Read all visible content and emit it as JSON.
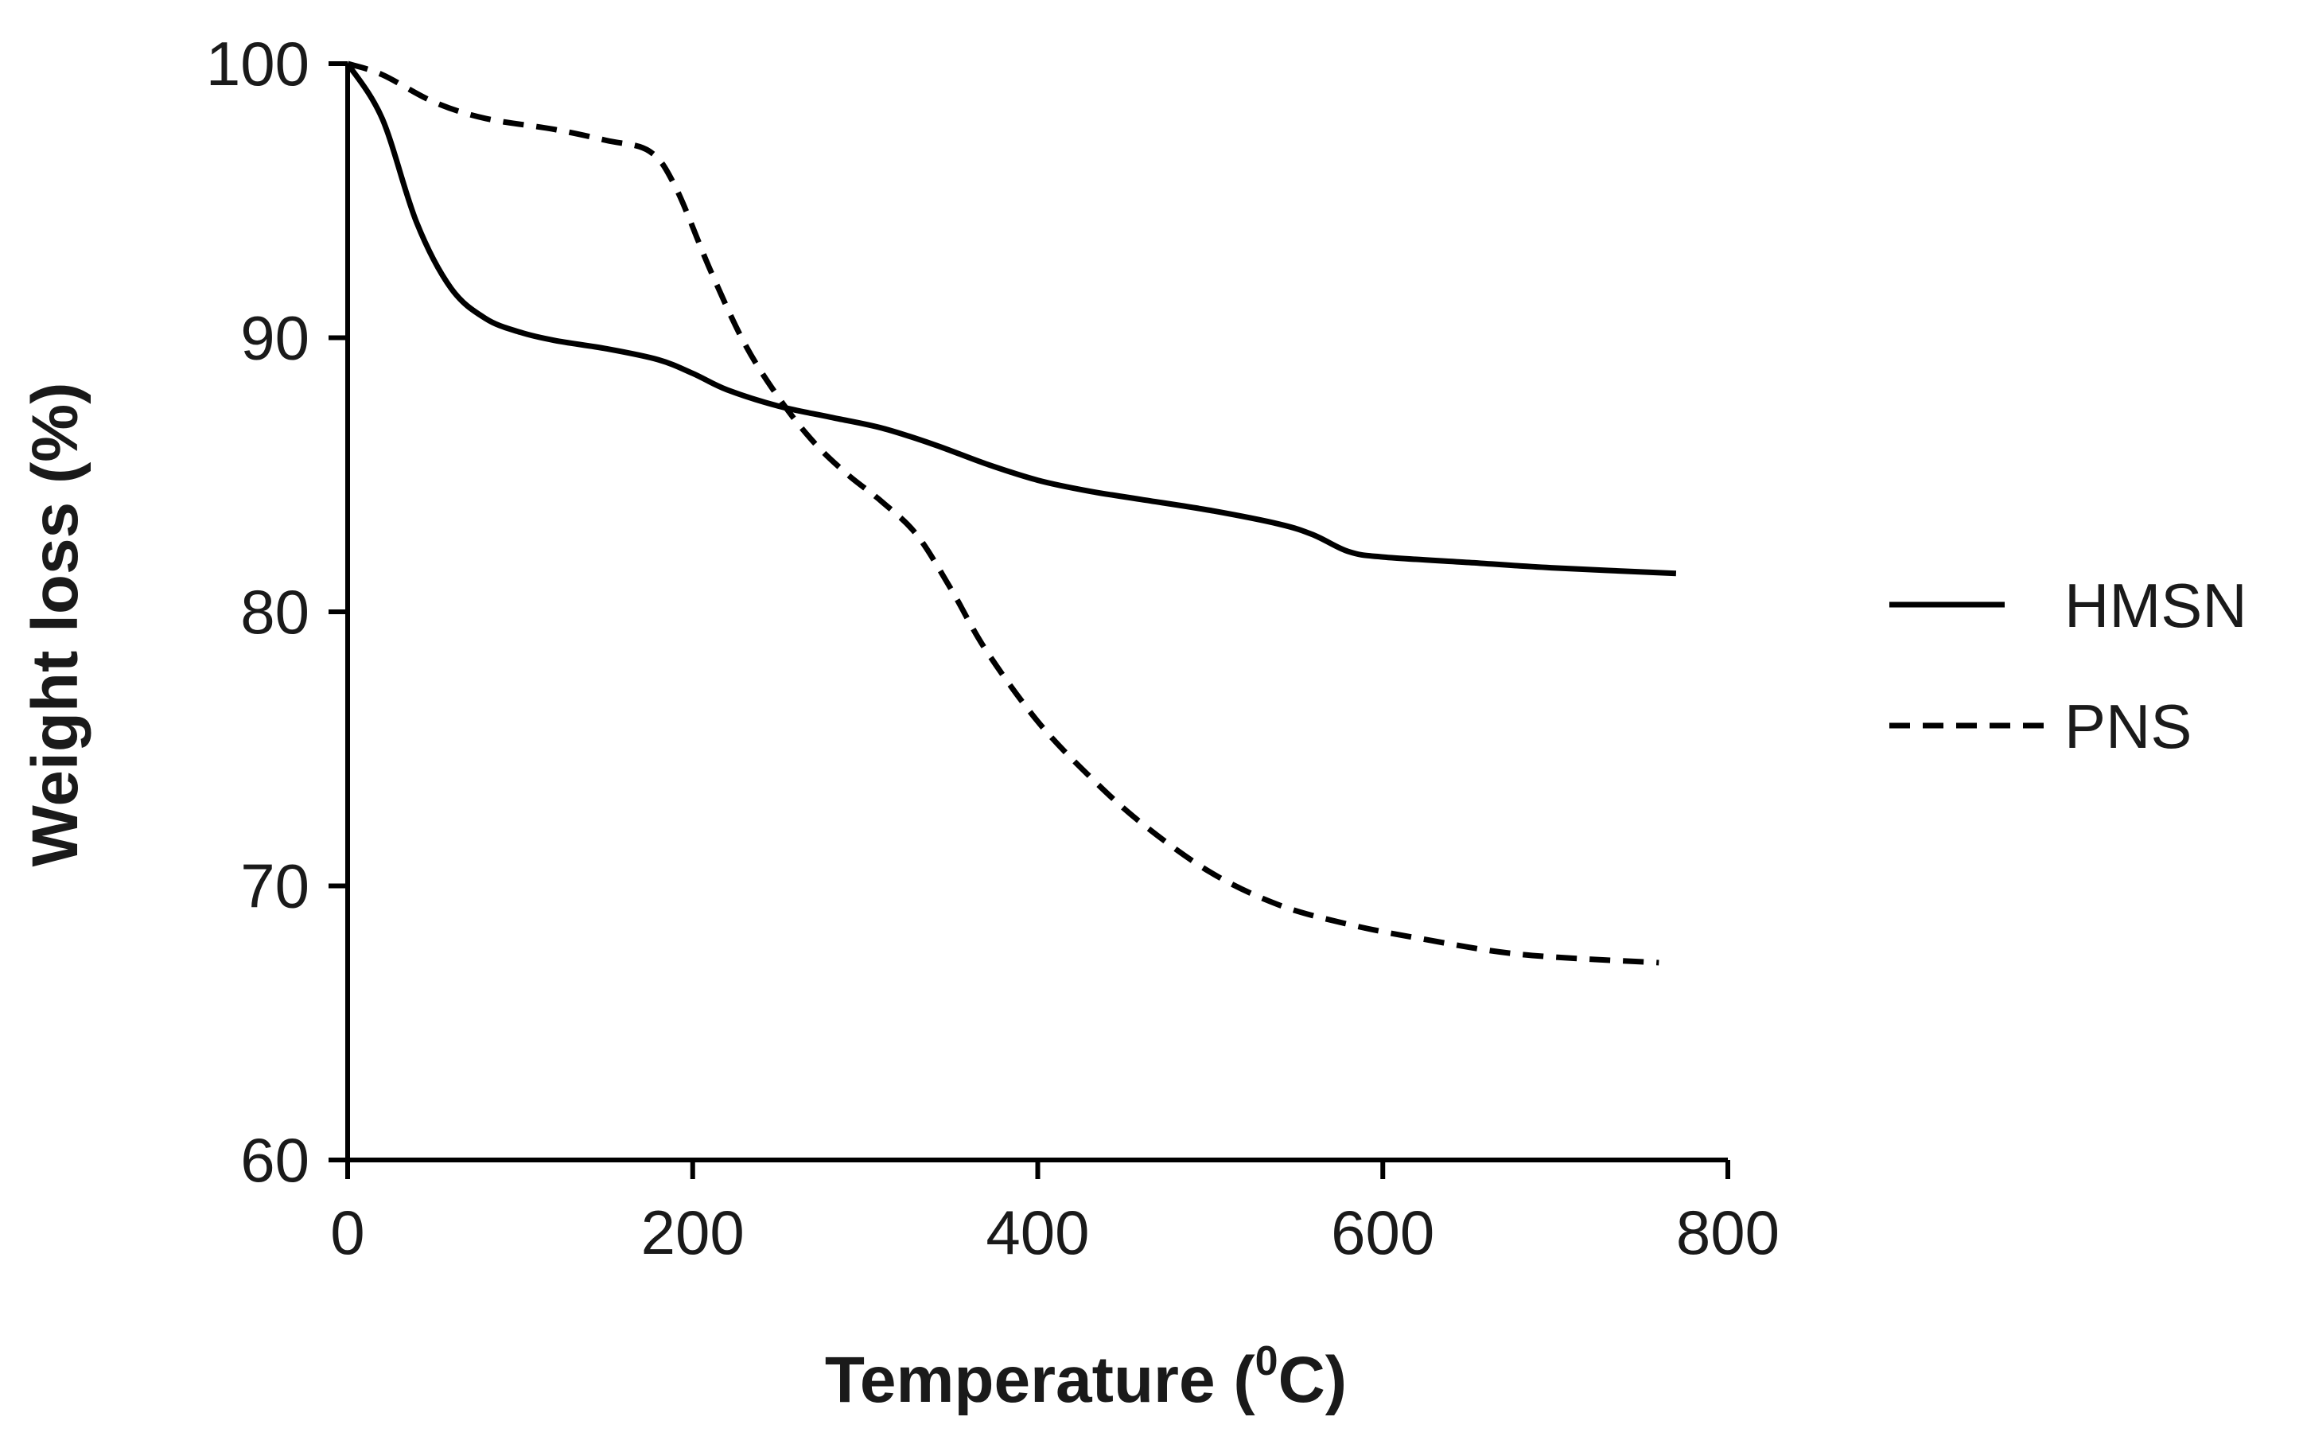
{
  "chart_data": {
    "type": "line",
    "title": "",
    "xlabel": {
      "text": "Temperature (",
      "sup": "0",
      "unit": "C)"
    },
    "ylabel": "Weight loss (%)",
    "xlim": [
      0,
      800
    ],
    "ylim": [
      60,
      100
    ],
    "xticks": [
      0,
      200,
      400,
      600,
      800
    ],
    "yticks": [
      60,
      70,
      80,
      90,
      100
    ],
    "grid": false,
    "legend_position": "right",
    "series": [
      {
        "name": "HMSN",
        "style": "solid",
        "color": "#000000",
        "x": [
          0,
          20,
          40,
          60,
          80,
          100,
          120,
          150,
          180,
          200,
          220,
          250,
          280,
          310,
          340,
          370,
          400,
          430,
          460,
          500,
          540,
          560,
          580,
          600,
          650,
          700,
          770
        ],
        "y": [
          100,
          98,
          94.2,
          91.8,
          90.7,
          90.2,
          89.9,
          89.6,
          89.2,
          88.7,
          88.1,
          87.5,
          87.1,
          86.7,
          86.1,
          85.4,
          84.8,
          84.4,
          84.1,
          83.7,
          83.2,
          82.8,
          82.2,
          82.0,
          81.8,
          81.6,
          81.4
        ]
      },
      {
        "name": "PNS",
        "style": "dashed",
        "color": "#000000",
        "x": [
          0,
          20,
          50,
          80,
          120,
          150,
          175,
          190,
          210,
          230,
          250,
          270,
          290,
          310,
          330,
          350,
          370,
          400,
          430,
          460,
          500,
          540,
          580,
          620,
          680,
          760
        ],
        "y": [
          100,
          99.6,
          98.6,
          98.0,
          97.6,
          97.2,
          96.8,
          95.5,
          92.5,
          89.8,
          87.8,
          86.2,
          85.0,
          84.0,
          82.8,
          80.8,
          78.6,
          76.0,
          74.0,
          72.3,
          70.5,
          69.3,
          68.6,
          68.1,
          67.5,
          67.2
        ]
      }
    ]
  }
}
